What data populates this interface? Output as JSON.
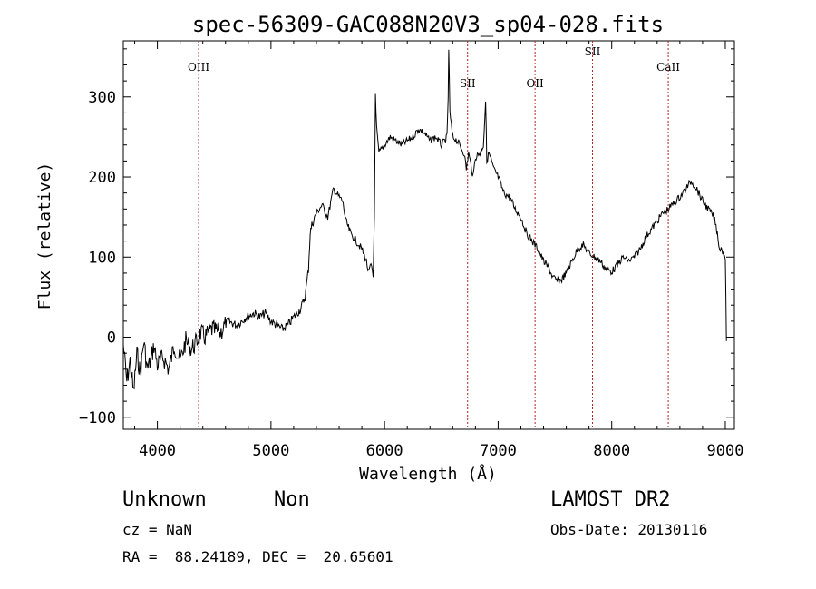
{
  "chart_data": {
    "type": "line",
    "title": "spec-56309-GAC088N20V3_sp04-028.fits",
    "xlabel": "Wavelength (Å)",
    "ylabel": "Flux (relative)",
    "xlim": [
      3700,
      9080
    ],
    "ylim": [
      -115,
      370
    ],
    "xticks": [
      4000,
      5000,
      6000,
      7000,
      8000,
      9000
    ],
    "yticks": [
      -100,
      0,
      100,
      200,
      300
    ],
    "grid": false,
    "series": [
      {
        "color": "#000000",
        "x": [
          3700,
          3730,
          3760,
          3790,
          3820,
          3850,
          3880,
          3910,
          3940,
          3970,
          4000,
          4050,
          4100,
          4150,
          4200,
          4250,
          4300,
          4350,
          4380,
          4420,
          4480,
          4550,
          4620,
          4700,
          4780,
          4850,
          4900,
          4950,
          5000,
          5050,
          5100,
          5150,
          5200,
          5260,
          5300,
          5330,
          5345,
          5360,
          5400,
          5450,
          5500,
          5550,
          5600,
          5630,
          5660,
          5700,
          5750,
          5800,
          5840,
          5860,
          5880,
          5900,
          5910,
          5920,
          5930,
          5950,
          6000,
          6050,
          6100,
          6150,
          6200,
          6250,
          6300,
          6350,
          6400,
          6450,
          6500,
          6530,
          6550,
          6560,
          6565,
          6575,
          6600,
          6640,
          6680,
          6700,
          6720,
          6740,
          6760,
          6780,
          6800,
          6840,
          6870,
          6890,
          6900,
          6920,
          6960,
          7000,
          7050,
          7100,
          7150,
          7200,
          7250,
          7300,
          7350,
          7400,
          7450,
          7480,
          7520,
          7560,
          7600,
          7650,
          7700,
          7750,
          7800,
          7850,
          7900,
          7950,
          8000,
          8050,
          8100,
          8150,
          8200,
          8250,
          8300,
          8350,
          8400,
          8450,
          8500,
          8550,
          8600,
          8650,
          8700,
          8750,
          8800,
          8850,
          8900,
          8930,
          8950,
          8970,
          9000,
          9010
        ],
        "y": [
          -10,
          -55,
          -30,
          -70,
          -20,
          -45,
          -5,
          -40,
          -30,
          -10,
          -35,
          -25,
          -40,
          -10,
          -30,
          -5,
          -15,
          -5,
          5,
          0,
          10,
          5,
          20,
          15,
          25,
          30,
          25,
          30,
          20,
          15,
          10,
          15,
          25,
          35,
          50,
          85,
          130,
          140,
          155,
          165,
          150,
          185,
          175,
          170,
          145,
          130,
          120,
          110,
          95,
          80,
          90,
          75,
          150,
          300,
          260,
          230,
          240,
          250,
          245,
          240,
          245,
          250,
          260,
          255,
          245,
          250,
          240,
          245,
          250,
          300,
          360,
          280,
          250,
          245,
          235,
          230,
          210,
          230,
          215,
          200,
          225,
          230,
          240,
          295,
          220,
          230,
          210,
          200,
          180,
          175,
          160,
          150,
          130,
          120,
          110,
          95,
          85,
          75,
          70,
          72,
          80,
          95,
          110,
          115,
          105,
          100,
          95,
          85,
          82,
          90,
          100,
          95,
          100,
          110,
          125,
          135,
          145,
          155,
          160,
          168,
          175,
          185,
          195,
          185,
          170,
          160,
          150,
          130,
          110,
          110,
          100,
          -5
        ]
      }
    ],
    "annotations": [
      {
        "label": "OIII",
        "x": 4363
      },
      {
        "label": "SII",
        "x": 6731
      },
      {
        "label": "OII",
        "x": 7325
      },
      {
        "label": "SII",
        "x": 7831
      },
      {
        "label": "CaII",
        "x": 8498
      }
    ],
    "annotation_color": "#b22222"
  },
  "footer": {
    "object_class": "Unknown",
    "subclass": "Non",
    "survey": "LAMOST DR2",
    "cz": "cz = NaN",
    "obs_date": "Obs-Date: 20130116",
    "coords": "RA =  88.24189, DEC =  20.65601"
  }
}
